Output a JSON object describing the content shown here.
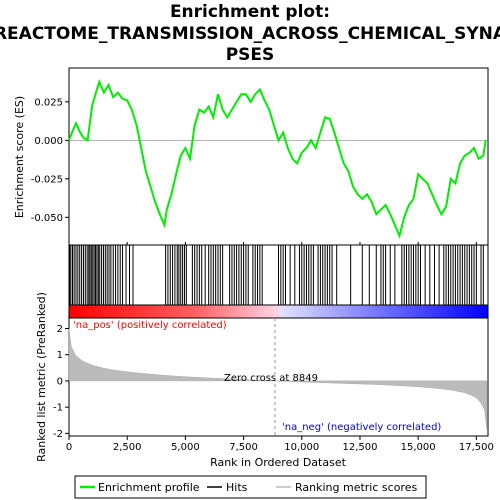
{
  "chart_data": {
    "type": "line",
    "title_lines": [
      "Enrichment plot:",
      "REACTOME_TRANSMISSION_ACROSS_CHEMICAL_SYNA",
      "PSES"
    ],
    "xlabel": "Rank in Ordered Dataset",
    "ylabel_top": "Enrichment score (ES)",
    "ylabel_bottom": "Ranked list metric (PreRanked)",
    "xlim": [
      0,
      18000
    ],
    "x_ticks": [
      0,
      2500,
      5000,
      7500,
      10000,
      12500,
      15000,
      17500
    ],
    "x_tick_labels": [
      "0",
      "2,500",
      "5,000",
      "7,500",
      "10,000",
      "12,500",
      "15,000",
      "17,500"
    ],
    "es_ylim": [
      -0.068,
      0.047
    ],
    "es_ticks": [
      0.025,
      0.0,
      -0.025,
      -0.05
    ],
    "es_tick_labels": [
      "0.025",
      "0.000",
      "-0.025",
      "-0.050"
    ],
    "metric_ylim": [
      -2.1,
      2.4
    ],
    "metric_ticks": [
      2,
      1,
      0,
      -1,
      -2
    ],
    "metric_tick_labels": [
      "2",
      "1",
      "0",
      "-1",
      "-2"
    ],
    "zero_cross": 8849,
    "zero_cross_label": "Zero cross at 8849",
    "pos_label": "'na_pos' (positively correlated)",
    "neg_label": "'na_neg' (negatively correlated)",
    "series": [
      {
        "name": "Enrichment profile",
        "color": "#00ee00",
        "x": [
          0,
          150,
          300,
          450,
          600,
          800,
          1000,
          1200,
          1300,
          1500,
          1700,
          1900,
          2100,
          2300,
          2500,
          2700,
          2900,
          3100,
          3300,
          3500,
          3700,
          3900,
          4100,
          4200,
          4400,
          4600,
          4800,
          5000,
          5200,
          5400,
          5600,
          5800,
          6000,
          6200,
          6400,
          6600,
          6800,
          7000,
          7200,
          7400,
          7600,
          7800,
          8000,
          8200,
          8400,
          8600,
          8800,
          9000,
          9200,
          9400,
          9600,
          9800,
          10000,
          10200,
          10400,
          10600,
          10800,
          11000,
          11200,
          11400,
          11600,
          11800,
          12000,
          12200,
          12400,
          12600,
          12800,
          13000,
          13200,
          13400,
          13600,
          13800,
          14000,
          14200,
          14400,
          14600,
          14800,
          15000,
          15200,
          15400,
          15600,
          15800,
          16000,
          16200,
          16400,
          16600,
          16800,
          17000,
          17200,
          17400,
          17600,
          17800,
          17900
        ],
        "y": [
          0.0,
          0.006,
          0.011,
          0.006,
          0.002,
          0.0,
          0.023,
          0.033,
          0.038,
          0.031,
          0.036,
          0.028,
          0.031,
          0.027,
          0.026,
          0.02,
          0.01,
          -0.005,
          -0.02,
          -0.03,
          -0.04,
          -0.048,
          -0.055,
          -0.045,
          -0.035,
          -0.022,
          -0.01,
          -0.005,
          -0.012,
          0.01,
          0.02,
          0.018,
          0.022,
          0.015,
          0.03,
          0.02,
          0.015,
          0.02,
          0.025,
          0.03,
          0.03,
          0.025,
          0.03,
          0.033,
          0.026,
          0.02,
          0.01,
          0.0,
          0.005,
          -0.005,
          -0.012,
          -0.015,
          -0.008,
          -0.005,
          0.0,
          -0.005,
          0.005,
          0.015,
          0.014,
          0.005,
          -0.005,
          -0.015,
          -0.02,
          -0.03,
          -0.035,
          -0.038,
          -0.035,
          -0.04,
          -0.048,
          -0.045,
          -0.042,
          -0.048,
          -0.055,
          -0.062,
          -0.05,
          -0.042,
          -0.038,
          -0.022,
          -0.025,
          -0.028,
          -0.035,
          -0.042,
          -0.048,
          -0.043,
          -0.025,
          -0.028,
          -0.015,
          -0.01,
          -0.008,
          -0.005,
          -0.012,
          -0.01,
          0.0
        ]
      },
      {
        "name": "Hits",
        "color": "#000000",
        "positions": [
          30,
          80,
          150,
          220,
          300,
          380,
          460,
          540,
          620,
          700,
          780,
          850,
          900,
          960,
          1020,
          1080,
          1140,
          1200,
          1260,
          1320,
          1400,
          1480,
          1560,
          1640,
          1720,
          1800,
          1900,
          2000,
          2100,
          2200,
          2300,
          2450,
          2600,
          2750,
          4150,
          4250,
          4350,
          4450,
          4550,
          4650,
          4720,
          4800,
          4880,
          4960,
          5040,
          5300,
          5400,
          5500,
          5600,
          5700,
          5850,
          6000,
          6100,
          6200,
          6300,
          6400,
          6500,
          6600,
          6900,
          7000,
          7100,
          7200,
          7300,
          7400,
          7500,
          7600,
          7700,
          7900,
          8000,
          8100,
          8200,
          8300,
          9000,
          9100,
          9200,
          9300,
          9500,
          9700,
          9900,
          10000,
          10100,
          10200,
          10300,
          10400,
          10500,
          10700,
          10800,
          10900,
          11000,
          11100,
          11200,
          11300,
          11500,
          12100,
          12600,
          12900,
          13200,
          13400,
          13500,
          13600,
          13800,
          14000,
          14300,
          14400,
          14500,
          14600,
          14700,
          14800,
          14900,
          15000,
          15100,
          15300,
          15500,
          15700,
          15900,
          16100,
          16200,
          16300,
          16400,
          16500,
          16600,
          16700,
          16800,
          16900,
          17000,
          17100,
          17200,
          17300,
          17400,
          17500,
          17700,
          17800
        ]
      },
      {
        "name": "Ranking metric scores",
        "color": "#bbbbbb",
        "x": [
          0,
          100,
          300,
          600,
          1000,
          1500,
          2000,
          3000,
          4000,
          5000,
          6000,
          7000,
          8000,
          8849,
          10000,
          11000,
          12000,
          13000,
          14000,
          15000,
          16000,
          16500,
          17000,
          17300,
          17500,
          17700,
          17850,
          17950
        ],
        "y": [
          2.0,
          1.3,
          0.95,
          0.75,
          0.6,
          0.48,
          0.4,
          0.3,
          0.22,
          0.16,
          0.11,
          0.07,
          0.03,
          0.0,
          -0.04,
          -0.07,
          -0.1,
          -0.13,
          -0.17,
          -0.22,
          -0.3,
          -0.36,
          -0.45,
          -0.55,
          -0.65,
          -0.85,
          -1.1,
          -1.85
        ]
      }
    ]
  }
}
